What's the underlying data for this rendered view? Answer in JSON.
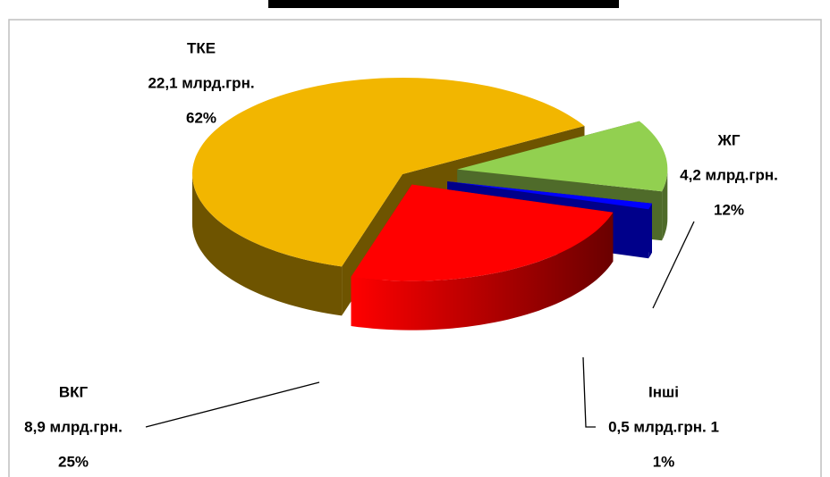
{
  "chart_data": {
    "type": "pie3d",
    "categories": [
      "ЖГ",
      "Інші",
      "ВКГ",
      "ТКЕ"
    ],
    "values": [
      12,
      1,
      25,
      62
    ],
    "value_labels": [
      "12%",
      "1%",
      "25%",
      "62%"
    ],
    "amount_labels": [
      "4,2 млрд.грн.",
      "0,5 млрд.грн. 1",
      "8,9 млрд.грн.",
      "22,1  млрд.грн."
    ],
    "colors": [
      "#92d050",
      "#0000ff",
      "#ff0000",
      "#f2b600"
    ],
    "side_colors": [
      "#4f6b2a",
      "#00008a",
      "url(#redSide)",
      "#6e5400"
    ]
  }
}
